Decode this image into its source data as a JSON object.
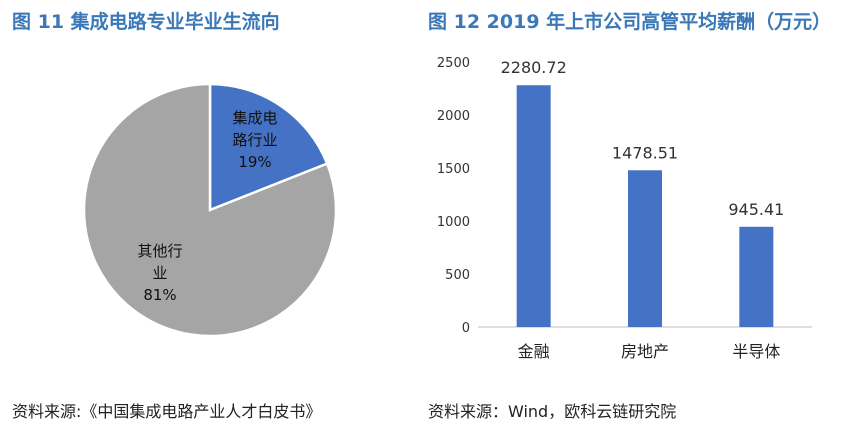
{
  "left_title": "图 11 集成电路专业毕业生流向",
  "right_title": "图 12 2019 年上市公司高管平均薪酬（万元）",
  "left_source": "资料来源:《中国集成电路产业人才白皮书》",
  "right_source": "资料来源：Wind，欧科云链研究院",
  "colors": {
    "pie_ic": "#4472c4",
    "pie_other": "#a5a5a5",
    "bar": "#4472c4",
    "title": "#3a78b8"
  },
  "chart_data": [
    {
      "type": "pie",
      "title": "图 11 集成电路专业毕业生流向",
      "slices": [
        {
          "label_lines": [
            "集成电",
            "路行业"
          ],
          "pct_label": "19%",
          "value": 19
        },
        {
          "label_lines": [
            "其他行",
            "业"
          ],
          "pct_label": "81%",
          "value": 81
        }
      ]
    },
    {
      "type": "bar",
      "title": "图 12 2019 年上市公司高管平均薪酬（万元）",
      "categories": [
        "金融",
        "房地产",
        "半导体"
      ],
      "values": [
        2280.72,
        1478.51,
        945.41
      ],
      "value_labels": [
        "2280.72",
        "1478.51",
        "945.41"
      ],
      "yticks": [
        "0",
        "500",
        "1000",
        "1500",
        "2000",
        "2500"
      ],
      "ylim": [
        0,
        2500
      ],
      "grid": false
    }
  ]
}
